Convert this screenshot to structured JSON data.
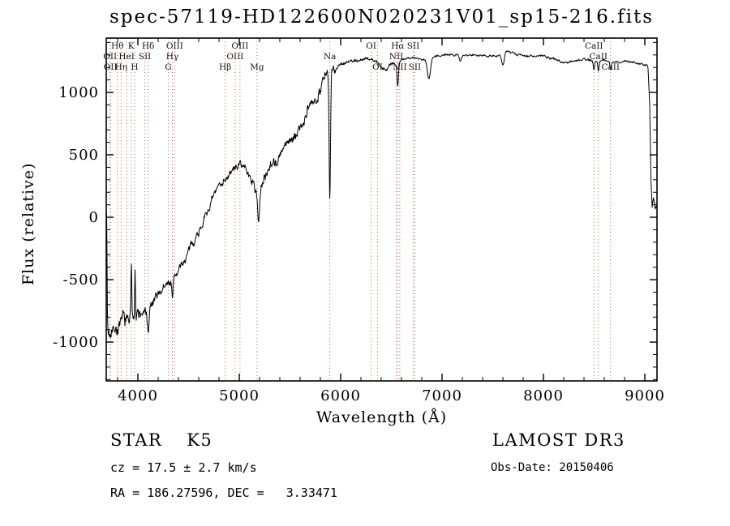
{
  "title": "spec-57119-HD122600N020231V01_sp15-216.fits",
  "axes": {
    "x_label": "Wavelength (Å)",
    "y_label": "Flux (relative)"
  },
  "footer": {
    "class_name": "STAR",
    "subclass": "K5",
    "survey": "LAMOST DR3",
    "cz_line": "cz = 17.5 ± 2.7 km/s",
    "obs_date": "Obs-Date: 20150406",
    "radec_line": "RA = 186.27596, DEC =   3.33471"
  },
  "chart_data": {
    "type": "line",
    "title": "spec-57119-HD122600N020231V01_sp15-216.fits",
    "xlabel": "Wavelength (Å)",
    "ylabel": "Flux (relative)",
    "xlim": [
      3688,
      9120
    ],
    "ylim": [
      -1311,
      1435
    ],
    "x_ticks": [
      4000,
      5000,
      6000,
      7000,
      8000,
      9000
    ],
    "y_ticks": [
      -1000,
      -500,
      0,
      500,
      1000
    ],
    "x_minor_step": 200,
    "y_minor_step": 100,
    "grid": false,
    "line_color": "#000000",
    "marker_color": "#b05b55",
    "line_markers": [
      {
        "label": "Hθ",
        "wavelength": 3798,
        "row": 1
      },
      {
        "label": "K",
        "wavelength": 3933,
        "row": 1
      },
      {
        "label": "Hδ",
        "wavelength": 4101,
        "row": 1
      },
      {
        "label": "OIII",
        "wavelength": 4363,
        "row": 1
      },
      {
        "label": "OIII",
        "wavelength": 5007,
        "row": 1
      },
      {
        "label": "OI",
        "wavelength": 6300,
        "row": 1
      },
      {
        "label": "Hα",
        "wavelength": 6563,
        "row": 1
      },
      {
        "label": "SII",
        "wavelength": 6716,
        "row": 1
      },
      {
        "label": "CaII",
        "wavelength": 8498,
        "row": 1
      },
      {
        "label": "OII",
        "wavelength": 3726,
        "row": 2
      },
      {
        "label": "HeI",
        "wavelength": 3889,
        "row": 2
      },
      {
        "label": "SII",
        "wavelength": 4068,
        "row": 2
      },
      {
        "label": "Hγ",
        "wavelength": 4340,
        "row": 2
      },
      {
        "label": "OIII",
        "wavelength": 4959,
        "row": 2
      },
      {
        "label": "Na",
        "wavelength": 5893,
        "row": 2
      },
      {
        "label": "NII",
        "wavelength": 6548,
        "row": 2
      },
      {
        "label": "CaII",
        "wavelength": 8542,
        "row": 2
      },
      {
        "label": "OII",
        "wavelength": 3729,
        "row": 3
      },
      {
        "label": "Hη",
        "wavelength": 3835,
        "row": 3
      },
      {
        "label": "H",
        "wavelength": 3968,
        "row": 3
      },
      {
        "label": "G",
        "wavelength": 4300,
        "row": 3
      },
      {
        "label": "Hβ",
        "wavelength": 4861,
        "row": 3
      },
      {
        "label": "Mg",
        "wavelength": 5175,
        "row": 3
      },
      {
        "label": "OI",
        "wavelength": 6363,
        "row": 3
      },
      {
        "label": "NII",
        "wavelength": 6583,
        "row": 3
      },
      {
        "label": "SII",
        "wavelength": 6731,
        "row": 3
      },
      {
        "label": "CaII",
        "wavelength": 8662,
        "row": 3
      }
    ],
    "spectrum": {
      "seed": 7,
      "step": 4,
      "anchors": [
        [
          3688,
          -950
        ],
        [
          3700,
          -900
        ],
        [
          3720,
          -930
        ],
        [
          3740,
          -860
        ],
        [
          3760,
          -890
        ],
        [
          3780,
          -870
        ],
        [
          3800,
          -900
        ],
        [
          3820,
          -850
        ],
        [
          3840,
          -870
        ],
        [
          3860,
          -800
        ],
        [
          3880,
          -840
        ],
        [
          3900,
          -820
        ],
        [
          3920,
          -800
        ],
        [
          3940,
          -790
        ],
        [
          3960,
          -760
        ],
        [
          3980,
          -800
        ],
        [
          4000,
          -780
        ],
        [
          4020,
          -790
        ],
        [
          4040,
          -760
        ],
        [
          4060,
          -790
        ],
        [
          4080,
          -770
        ],
        [
          4100,
          -800
        ],
        [
          4120,
          -740
        ],
        [
          4150,
          -690
        ],
        [
          4200,
          -620
        ],
        [
          4250,
          -560
        ],
        [
          4300,
          -530
        ],
        [
          4350,
          -480
        ],
        [
          4400,
          -430
        ],
        [
          4450,
          -360
        ],
        [
          4500,
          -280
        ],
        [
          4550,
          -190
        ],
        [
          4600,
          -110
        ],
        [
          4650,
          -20
        ],
        [
          4700,
          70
        ],
        [
          4750,
          170
        ],
        [
          4800,
          250
        ],
        [
          4850,
          310
        ],
        [
          4900,
          330
        ],
        [
          4950,
          390
        ],
        [
          5000,
          430
        ],
        [
          5040,
          410
        ],
        [
          5080,
          360
        ],
        [
          5120,
          300
        ],
        [
          5160,
          230
        ],
        [
          5200,
          170
        ],
        [
          5250,
          320
        ],
        [
          5300,
          430
        ],
        [
          5340,
          470
        ],
        [
          5380,
          430
        ],
        [
          5420,
          520
        ],
        [
          5460,
          560
        ],
        [
          5500,
          640
        ],
        [
          5540,
          600
        ],
        [
          5580,
          700
        ],
        [
          5620,
          740
        ],
        [
          5660,
          800
        ],
        [
          5700,
          880
        ],
        [
          5740,
          930
        ],
        [
          5780,
          1010
        ],
        [
          5820,
          1080
        ],
        [
          5860,
          1140
        ],
        [
          5900,
          1180
        ],
        [
          5950,
          1210
        ],
        [
          6000,
          1230
        ],
        [
          6100,
          1250
        ],
        [
          6200,
          1260
        ],
        [
          6300,
          1270
        ],
        [
          6350,
          1250
        ],
        [
          6400,
          1200
        ],
        [
          6450,
          1180
        ],
        [
          6500,
          1240
        ],
        [
          6550,
          1230
        ],
        [
          6600,
          1260
        ],
        [
          6650,
          1270
        ],
        [
          6700,
          1280
        ],
        [
          6750,
          1270
        ],
        [
          6800,
          1260
        ],
        [
          6900,
          1290
        ],
        [
          7000,
          1300
        ],
        [
          7100,
          1300
        ],
        [
          7200,
          1300
        ],
        [
          7300,
          1300
        ],
        [
          7400,
          1300
        ],
        [
          7500,
          1290
        ],
        [
          7560,
          1300
        ],
        [
          7620,
          1340
        ],
        [
          7680,
          1320
        ],
        [
          7740,
          1300
        ],
        [
          7800,
          1300
        ],
        [
          7900,
          1290
        ],
        [
          8000,
          1290
        ],
        [
          8100,
          1270
        ],
        [
          8200,
          1240
        ],
        [
          8300,
          1250
        ],
        [
          8400,
          1270
        ],
        [
          8500,
          1250
        ],
        [
          8600,
          1260
        ],
        [
          8700,
          1240
        ],
        [
          8800,
          1250
        ],
        [
          8900,
          1240
        ],
        [
          9000,
          1220
        ],
        [
          9030,
          1210
        ],
        [
          9048,
          900
        ],
        [
          9060,
          300
        ],
        [
          9072,
          60
        ],
        [
          9085,
          160
        ],
        [
          9100,
          80
        ]
      ],
      "noise_segments": [
        [
          3688,
          4150,
          95
        ],
        [
          4150,
          4600,
          55
        ],
        [
          4600,
          5150,
          45
        ],
        [
          5150,
          5950,
          75
        ],
        [
          5950,
          6600,
          20
        ],
        [
          6600,
          9030,
          13
        ],
        [
          9030,
          9120,
          30
        ]
      ],
      "features": [
        {
          "center": 3692,
          "width": 4,
          "target": 30
        },
        {
          "center": 3935,
          "width": 4,
          "target": -360
        },
        {
          "center": 3972,
          "width": 4,
          "target": -420
        },
        {
          "center": 4102,
          "width": 6,
          "target": -930
        },
        {
          "center": 4341,
          "width": 6,
          "target": -650
        },
        {
          "center": 5190,
          "width": 8,
          "target": -40
        },
        {
          "center": 5893,
          "width": 7,
          "target": 140
        },
        {
          "center": 6563,
          "width": 7,
          "target": 1050
        },
        {
          "center": 6870,
          "width": 16,
          "target": 1110
        },
        {
          "center": 7180,
          "width": 10,
          "target": 1250
        },
        {
          "center": 7600,
          "width": 14,
          "target": 1220
        },
        {
          "center": 8498,
          "width": 6,
          "target": 1180
        },
        {
          "center": 8542,
          "width": 6,
          "target": 1170
        },
        {
          "center": 8662,
          "width": 6,
          "target": 1180
        }
      ]
    }
  }
}
